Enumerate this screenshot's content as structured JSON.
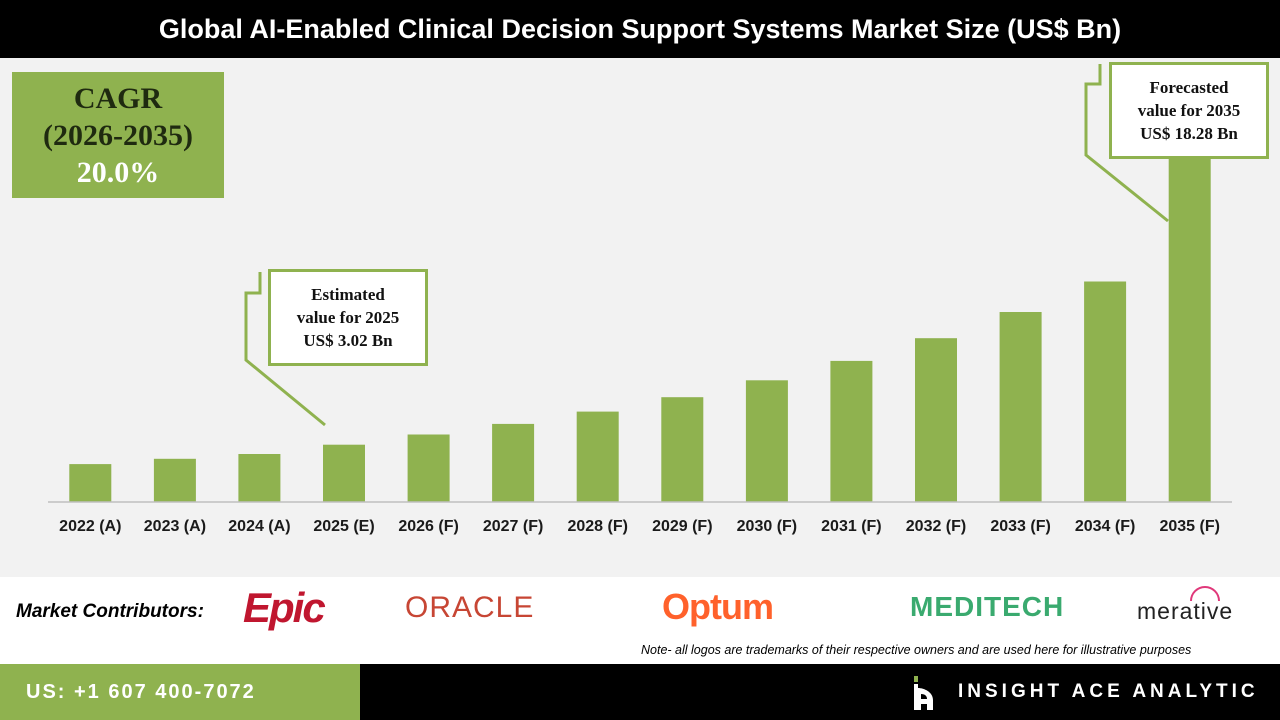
{
  "title": "Global AI-Enabled Clinical Decision Support Systems Market Size (US$ Bn)",
  "cagr": {
    "label": "CAGR",
    "period": "(2026-2035)",
    "value": "20.0%"
  },
  "callouts": {
    "estimated": "Estimated\nvalue for 2025\nUS$ 3.02 Bn",
    "forecasted": "Forecasted\nvalue for 2035\nUS$ 18.28 Bn"
  },
  "chart_data": {
    "type": "bar",
    "title": "Global AI-Enabled Clinical Decision Support Systems Market Size (US$ Bn)",
    "xlabel": "",
    "ylabel": "",
    "categories": [
      "2022 (A)",
      "2023 (A)",
      "2024 (A)",
      "2025 (E)",
      "2026 (F)",
      "2027 (F)",
      "2028 (F)",
      "2029 (F)",
      "2030 (F)",
      "2031 (F)",
      "2032 (F)",
      "2033 (F)",
      "2034 (F)",
      "2035 (F)"
    ],
    "values": [
      2.0,
      2.28,
      2.53,
      3.02,
      3.56,
      4.12,
      4.77,
      5.53,
      6.42,
      7.44,
      8.64,
      10.02,
      11.63,
      18.28
    ],
    "ylim": [
      0,
      19.2
    ],
    "grid": false,
    "bar_color": "#8fb24f",
    "axis_color": "#bfbfbf"
  },
  "contributors": {
    "label": "Market Contributors:",
    "logos": [
      "Epic",
      "ORACLE",
      "Optum",
      "MEDITECH",
      "merative"
    ],
    "note": "Note- all logos are trademarks of their respective owners and are used here for illustrative purposes"
  },
  "footer": {
    "phone": "US: +1 607 400-7072",
    "brand": "INSIGHT ACE ANALYTIC"
  },
  "colors": {
    "accent": "#8fb24f",
    "header_bg": "#000000",
    "chart_bg": "#f2f2f2"
  }
}
